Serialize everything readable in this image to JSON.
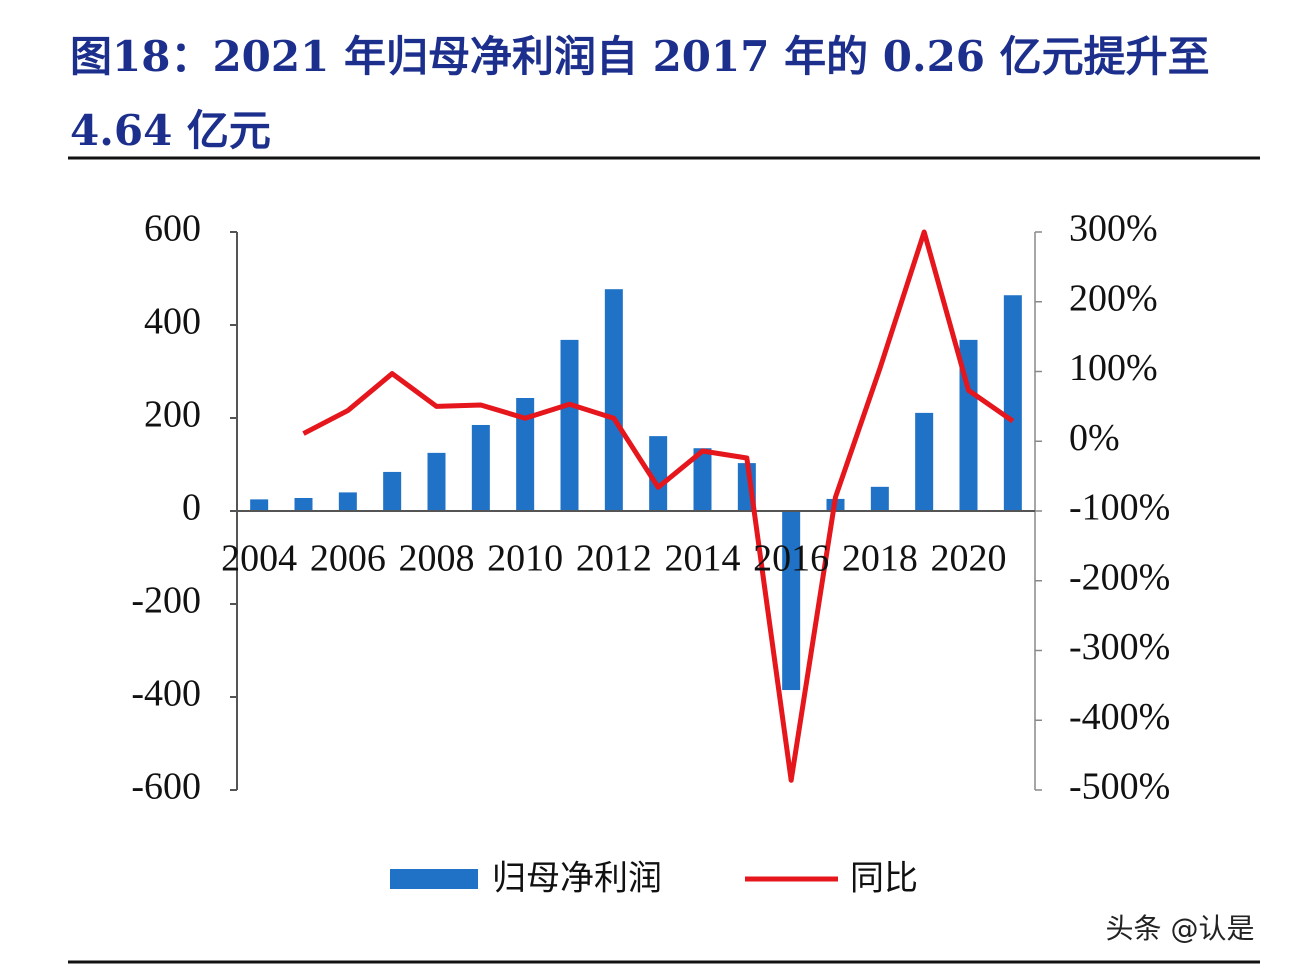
{
  "chart_data": {
    "type": "bar-line",
    "title": "图18：2021 年归母净利润自 2017 年的 0.26 亿元提升至 4.64 亿元",
    "categories": [
      "2004",
      null,
      "2006",
      null,
      "2008",
      null,
      "2010",
      null,
      "2012",
      null,
      "2014",
      null,
      "2016",
      null,
      "2018",
      null,
      "2020",
      null
    ],
    "series": [
      {
        "name": "归母净利润",
        "color": "#1f72c6",
        "type": "bar",
        "values": [
          25,
          28,
          40,
          84,
          125,
          185,
          243,
          368,
          477,
          161,
          135,
          103,
          -385,
          26,
          52,
          211,
          368,
          464
        ]
      },
      {
        "name": "同比",
        "color": "#e5161c",
        "type": "line",
        "axis": "y2",
        "values": [
          null,
          11,
          44,
          97,
          50,
          52,
          33,
          53,
          33,
          -66,
          -14,
          -24,
          -486,
          -80,
          104,
          300,
          73,
          29
        ]
      }
    ],
    "ylim": [
      -600,
      600
    ],
    "yticks": [
      -600,
      -400,
      -200,
      0,
      200,
      400,
      600
    ],
    "y2lim": [
      -500,
      300
    ],
    "y2ticks": [
      {
        "value": -500,
        "label": "-500%"
      },
      {
        "value": -400,
        "label": "-400%"
      },
      {
        "value": -300,
        "label": "-300%"
      },
      {
        "value": -200,
        "label": "-200%"
      },
      {
        "value": -100,
        "label": "-100%"
      },
      {
        "value": 0,
        "label": "0%"
      },
      {
        "value": 100,
        "label": "100%"
      },
      {
        "value": 200,
        "label": "200%"
      },
      {
        "value": 300,
        "label": "300%"
      }
    ],
    "legend": "bottom",
    "annotation": "头条 @认是"
  }
}
